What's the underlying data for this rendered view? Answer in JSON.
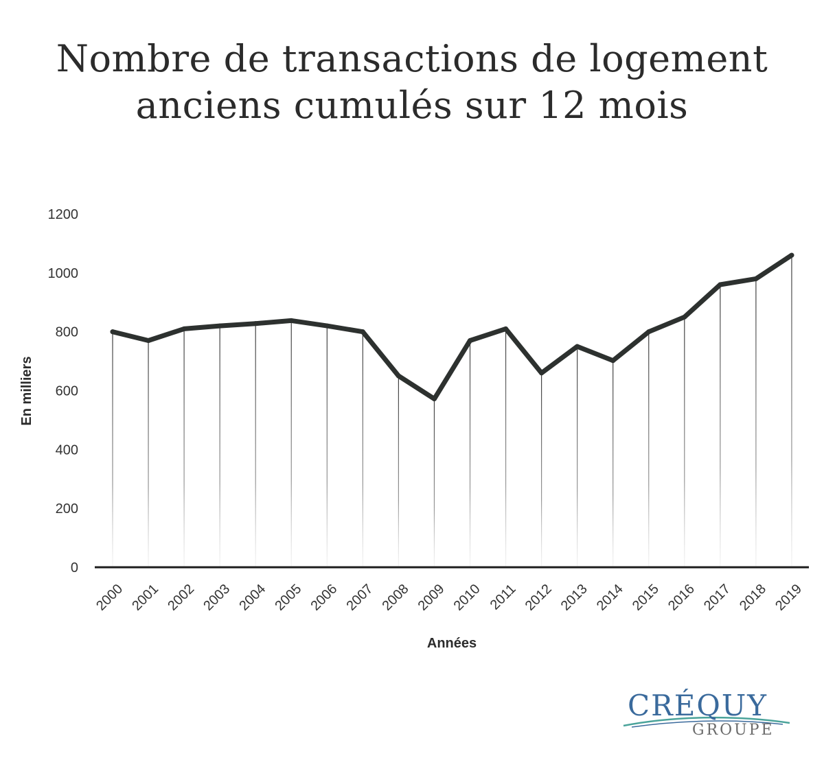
{
  "chart_data": {
    "type": "line",
    "title_lines": [
      "Nombre de transactions de logement",
      "anciens cumulés sur 12 mois"
    ],
    "xlabel": "Années",
    "ylabel": "En milliers",
    "categories": [
      "2000",
      "2001",
      "2002",
      "2003",
      "2004",
      "2005",
      "2006",
      "2007",
      "2008",
      "2009",
      "2010",
      "2011",
      "2012",
      "2013",
      "2014",
      "2015",
      "2016",
      "2017",
      "2018",
      "2019"
    ],
    "series": [
      {
        "values": [
          800,
          770,
          810,
          820,
          828,
          838,
          820,
          800,
          650,
          572,
          770,
          810,
          660,
          750,
          702,
          800,
          850,
          960,
          980,
          1060
        ]
      }
    ],
    "ylim": [
      0,
      1200
    ],
    "yticks": [
      0,
      200,
      400,
      600,
      800,
      1000,
      1200
    ],
    "grid": false,
    "drop_lines": true,
    "legend": "none",
    "line_color": "#2d312f"
  },
  "logo": {
    "main": "CRÉQUY",
    "sub": "GROUPE",
    "main_color": "#3a6a9c",
    "swoosh_color": "#4aa39a"
  }
}
